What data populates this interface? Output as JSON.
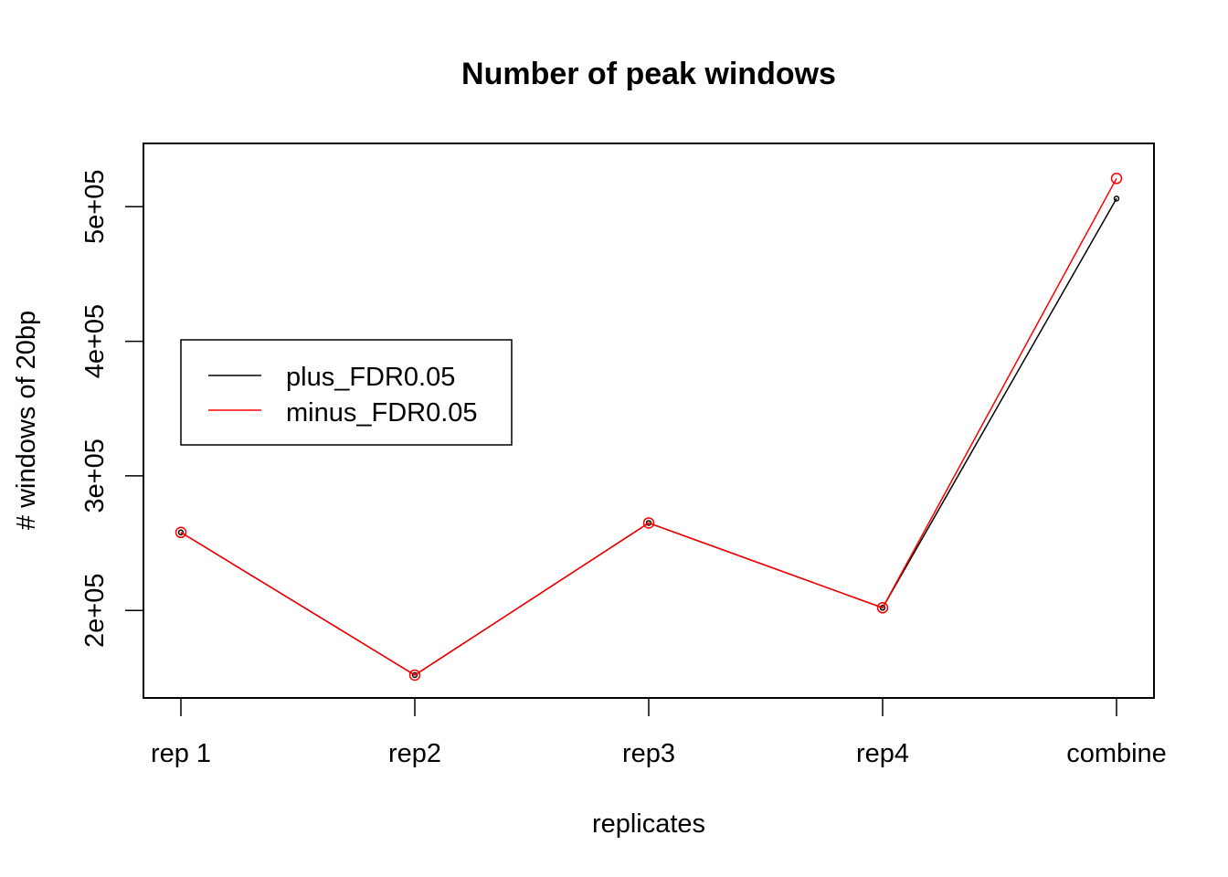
{
  "chart_data": {
    "type": "line",
    "title": "Number of peak windows",
    "xlabel": "replicates",
    "ylabel": "# windows of 20bp",
    "categories": [
      "rep 1",
      "rep2",
      "rep3",
      "rep4",
      "combine"
    ],
    "ylim": [
      135000,
      547000
    ],
    "yticks": [
      200000,
      300000,
      400000,
      500000
    ],
    "ytick_labels": [
      "2e+05",
      "3e+05",
      "4e+05",
      "5e+05"
    ],
    "grid": false,
    "legend_position": "left-middle",
    "series": [
      {
        "name": "plus_FDR0.05",
        "color": "#000000",
        "marker": "small-circle",
        "values": [
          258000,
          152000,
          265000,
          202000,
          506000
        ]
      },
      {
        "name": "minus_FDR0.05",
        "color": "#ff0000",
        "marker": "circle",
        "values": [
          258000,
          152000,
          265000,
          202000,
          521000
        ]
      }
    ]
  }
}
